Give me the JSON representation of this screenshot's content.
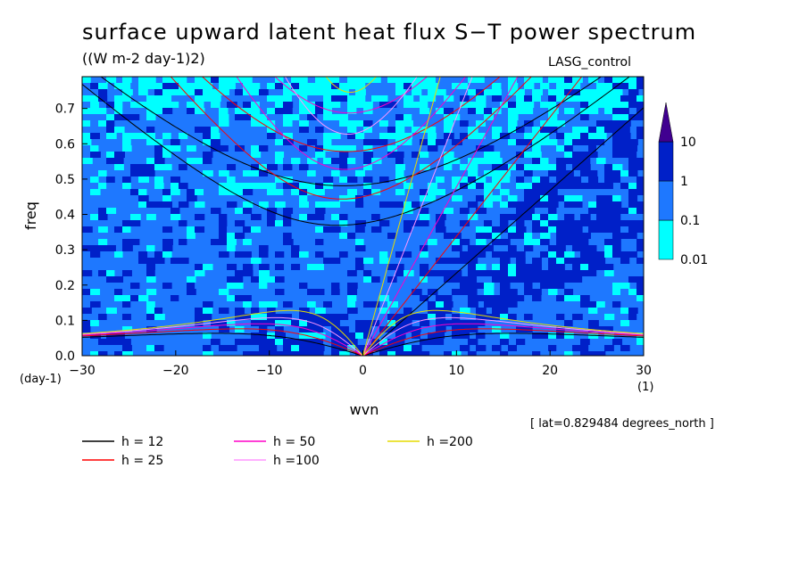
{
  "chart_data": {
    "type": "heatmap",
    "title": "surface upward latent heat flux S−T power spectrum",
    "units": "((W m-2 day-1)2)",
    "annotation": "LASG_control",
    "note": "[ lat=0.829484 degrees_north ]",
    "xlabel": "wvn",
    "ylabel": "freq",
    "x_unit": "(1)",
    "y_unit": "(day-1)",
    "xlim": [
      -30,
      30
    ],
    "ylim": [
      0,
      0.79
    ],
    "xticks": [
      -30,
      -20,
      -10,
      0,
      10,
      20,
      30
    ],
    "xtick_labels": [
      "−30",
      "−20",
      "−10",
      "0",
      "10",
      "20",
      "30"
    ],
    "yticks": [
      0.0,
      0.1,
      0.2,
      0.3,
      0.4,
      0.5,
      0.6,
      0.7
    ],
    "ytick_labels": [
      "0.0",
      "0.1",
      "0.2",
      "0.3",
      "0.4",
      "0.5",
      "0.6",
      "0.7"
    ],
    "colorbar": {
      "levels": [
        0.01,
        0.1,
        1,
        10
      ],
      "labels": [
        "0.01",
        "0.1",
        "1",
        "10"
      ],
      "colors": [
        "#00ffff",
        "#1e78ff",
        "#0020c8",
        "#400090"
      ]
    },
    "series": [
      {
        "name": "h = 12",
        "color": "#000000",
        "equivalent_depth": 12
      },
      {
        "name": "h = 25",
        "color": "#ff0000",
        "equivalent_depth": 25
      },
      {
        "name": "h = 50",
        "color": "#ff00c8",
        "equivalent_depth": 50
      },
      {
        "name": "h =100",
        "color": "#ff96ff",
        "equivalent_depth": 100
      },
      {
        "name": "h =200",
        "color": "#e6dc00",
        "equivalent_depth": 200
      }
    ],
    "legend_position": "bottom-left",
    "grid": false
  }
}
